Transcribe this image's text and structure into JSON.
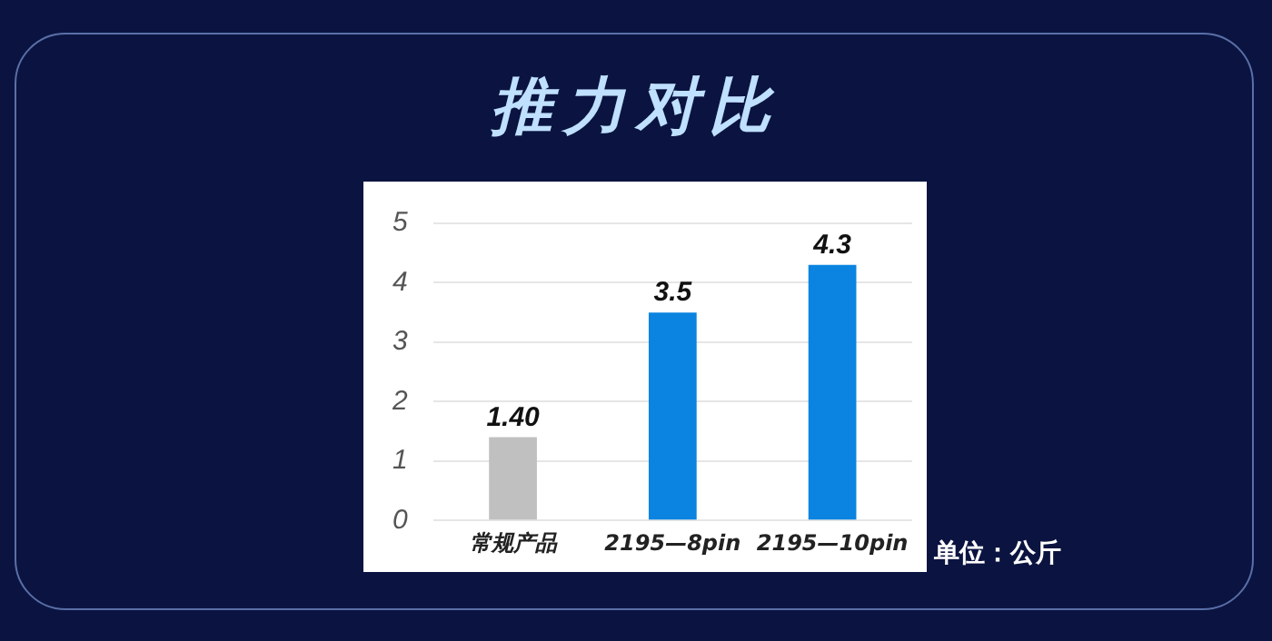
{
  "chart_data": {
    "type": "bar",
    "title": "推力对比",
    "categories": [
      "常规产品",
      "2195—8pin",
      "2195—10pin"
    ],
    "values": [
      1.4,
      3.5,
      4.3
    ],
    "colors": [
      "#c0c0c0",
      "#0a84e0",
      "#0a84e0"
    ],
    "value_labels": [
      "1.40",
      "3.5",
      "4.3"
    ],
    "ylim": [
      0,
      5
    ],
    "yticks": [
      0,
      1,
      2,
      3,
      4,
      5
    ],
    "grid": "y",
    "legend": false,
    "annotations": [
      "单位：公斤"
    ]
  }
}
